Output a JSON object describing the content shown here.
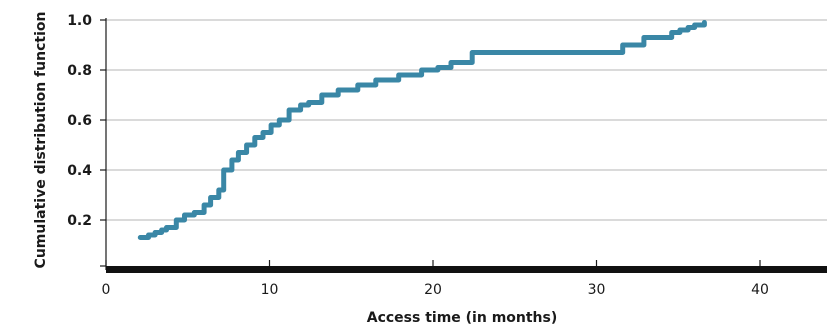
{
  "chart_data": {
    "type": "line",
    "step": true,
    "title": "",
    "xlabel": "Access time (in months)",
    "ylabel": "Cumulative distribution function",
    "xlim": [
      0,
      44
    ],
    "ylim": [
      0,
      1.0
    ],
    "x_ticks": [
      {
        "value": 0,
        "label": "0"
      },
      {
        "value": 10,
        "label": "10"
      },
      {
        "value": 20,
        "label": "20"
      },
      {
        "value": 30,
        "label": "30"
      },
      {
        "value": 40,
        "label": "40"
      }
    ],
    "y_ticks": [
      {
        "value": 0.2,
        "label": "0.2"
      },
      {
        "value": 0.4,
        "label": "0.4"
      },
      {
        "value": 0.6,
        "label": "0.6"
      },
      {
        "value": 0.8,
        "label": "0.8"
      },
      {
        "value": 1.0,
        "label": "1.0"
      }
    ],
    "grid": {
      "y": true,
      "x": false
    },
    "line_color": "#3a87a6",
    "series": [
      {
        "x": [
          2.1,
          2.6,
          3.0,
          3.4,
          3.7,
          4.3,
          4.8,
          5.4,
          6.0,
          6.4,
          6.9,
          7.2,
          7.7,
          8.1,
          8.6,
          9.1,
          9.6,
          10.1,
          10.6,
          11.2,
          11.9,
          12.4,
          13.2,
          14.2,
          15.4,
          16.5,
          17.9,
          19.3,
          20.3,
          21.1,
          22.4,
          25.0,
          29.0,
          31.6,
          32.9,
          34.6,
          35.1,
          35.6,
          36.0,
          36.6
        ],
        "y": [
          0.13,
          0.14,
          0.15,
          0.16,
          0.17,
          0.2,
          0.22,
          0.23,
          0.26,
          0.29,
          0.32,
          0.4,
          0.44,
          0.47,
          0.5,
          0.53,
          0.55,
          0.58,
          0.6,
          0.64,
          0.66,
          0.67,
          0.7,
          0.72,
          0.74,
          0.76,
          0.78,
          0.8,
          0.81,
          0.83,
          0.87,
          0.87,
          0.87,
          0.9,
          0.93,
          0.95,
          0.96,
          0.97,
          0.98,
          0.99
        ]
      }
    ]
  }
}
